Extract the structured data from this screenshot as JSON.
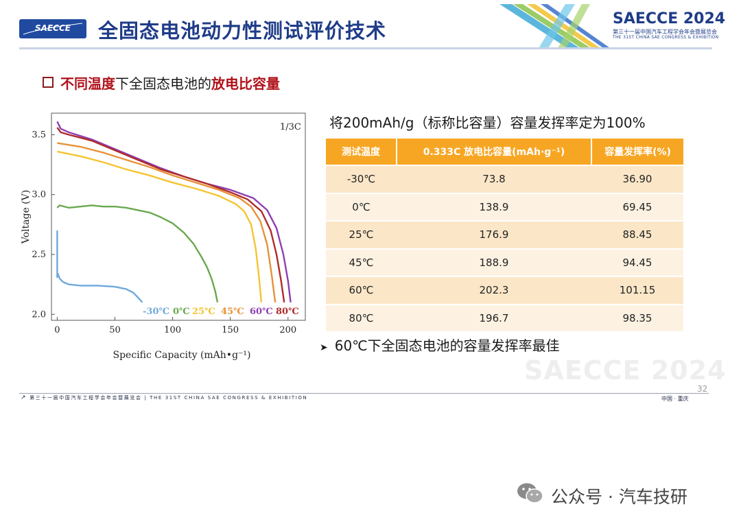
{
  "header": {
    "logo_text": "SAECCE",
    "title": "全固态电池动力性测试评价技术",
    "brand": "SAECCE 2024",
    "brand_sub_cn": "第三十一届中国汽车工程学会年会暨展览会",
    "brand_sub_en": "THE 31ST CHINA SAE CONGRESS & EXHIBITION"
  },
  "subtitle": {
    "part1": "不同温度",
    "part2": "下全固态电池的",
    "part3": "放电比容量"
  },
  "note": "将200mAh/g（标称比容量）容量发挥率定为100%",
  "table": {
    "headers": [
      "测试温度",
      "0.333C 放电比容量(mAh·g⁻¹)",
      "容量发挥率(%)"
    ],
    "rows": [
      [
        "-30℃",
        "73.8",
        "36.90"
      ],
      [
        "0℃",
        "138.9",
        "69.45"
      ],
      [
        "25℃",
        "176.9",
        "88.45"
      ],
      [
        "45℃",
        "188.9",
        "94.45"
      ],
      [
        "60℃",
        "202.3",
        "101.15"
      ],
      [
        "80℃",
        "196.7",
        "98.35"
      ]
    ]
  },
  "conclusion": "60℃下全固态电池的容量发挥率最佳",
  "watermark": "SAECCE 2024",
  "footer": {
    "page": "32",
    "text": "第三十一届中国汽车工程学会年会暨展览会 | THE 31ST CHINA SAE CONGRESS & EXHIBITION",
    "location": "中国 · 重庆"
  },
  "wechat": {
    "text": "公众号 · 汽车技研",
    "icon": "wechat-icon"
  },
  "colors": {
    "title_blue": "#1f3c88",
    "table_header": "#f7a623",
    "highlight_red": "#b0121b"
  },
  "chart_data": {
    "type": "line",
    "xlabel": "Specific Capacity (mAh•g⁻¹)",
    "ylabel": "Voltage (V)",
    "xlim": [
      -5,
      215
    ],
    "ylim": [
      1.95,
      3.68
    ],
    "xticks": [
      0,
      50,
      100,
      150,
      200
    ],
    "yticks": [
      2.0,
      2.5,
      3.0,
      3.5
    ],
    "annotation": "1/3C",
    "legend_placement": "bottom",
    "series": [
      {
        "name": "-30℃",
        "color": "#6fa8dc",
        "x": [
          0,
          0,
          0.5,
          2,
          5,
          10,
          20,
          35,
          50,
          60,
          66,
          70,
          73.8
        ],
        "y": [
          2.7,
          2.31,
          2.34,
          2.3,
          2.27,
          2.25,
          2.24,
          2.24,
          2.23,
          2.21,
          2.18,
          2.14,
          2.1
        ]
      },
      {
        "name": "0℃",
        "color": "#6aa84f",
        "x": [
          0,
          2,
          10,
          20,
          30,
          40,
          50,
          60,
          70,
          80,
          90,
          100,
          110,
          118,
          125,
          130,
          134,
          137,
          138.9
        ],
        "y": [
          2.89,
          2.91,
          2.89,
          2.9,
          2.91,
          2.9,
          2.9,
          2.89,
          2.87,
          2.85,
          2.81,
          2.76,
          2.68,
          2.59,
          2.48,
          2.39,
          2.29,
          2.19,
          2.1
        ]
      },
      {
        "name": "25℃",
        "color": "#f4c430",
        "x": [
          0,
          20,
          40,
          60,
          80,
          100,
          120,
          140,
          155,
          162,
          168,
          172,
          175,
          176.9
        ],
        "y": [
          3.36,
          3.32,
          3.27,
          3.21,
          3.16,
          3.1,
          3.05,
          2.99,
          2.92,
          2.86,
          2.75,
          2.55,
          2.3,
          2.1
        ]
      },
      {
        "name": "45℃",
        "color": "#e69138",
        "x": [
          0,
          20,
          40,
          60,
          80,
          100,
          120,
          140,
          158,
          168,
          176,
          182,
          186,
          188.9
        ],
        "y": [
          3.43,
          3.4,
          3.35,
          3.29,
          3.23,
          3.16,
          3.1,
          3.04,
          2.97,
          2.9,
          2.78,
          2.58,
          2.32,
          2.1
        ]
      },
      {
        "name": "60℃",
        "color": "#8e3fb0",
        "x": [
          0,
          3,
          10,
          30,
          50,
          70,
          90,
          110,
          130,
          150,
          170,
          182,
          190,
          196,
          200,
          202.3
        ],
        "y": [
          3.61,
          3.55,
          3.52,
          3.46,
          3.38,
          3.3,
          3.22,
          3.15,
          3.09,
          3.04,
          2.97,
          2.87,
          2.72,
          2.5,
          2.28,
          2.1
        ]
      },
      {
        "name": "80℃",
        "color": "#b02a2a",
        "x": [
          0,
          3,
          10,
          30,
          50,
          70,
          90,
          110,
          130,
          150,
          165,
          177,
          185,
          190,
          194,
          196.7
        ],
        "y": [
          3.56,
          3.52,
          3.5,
          3.45,
          3.37,
          3.29,
          3.21,
          3.15,
          3.09,
          3.02,
          2.96,
          2.86,
          2.7,
          2.5,
          2.28,
          2.1
        ]
      }
    ]
  }
}
